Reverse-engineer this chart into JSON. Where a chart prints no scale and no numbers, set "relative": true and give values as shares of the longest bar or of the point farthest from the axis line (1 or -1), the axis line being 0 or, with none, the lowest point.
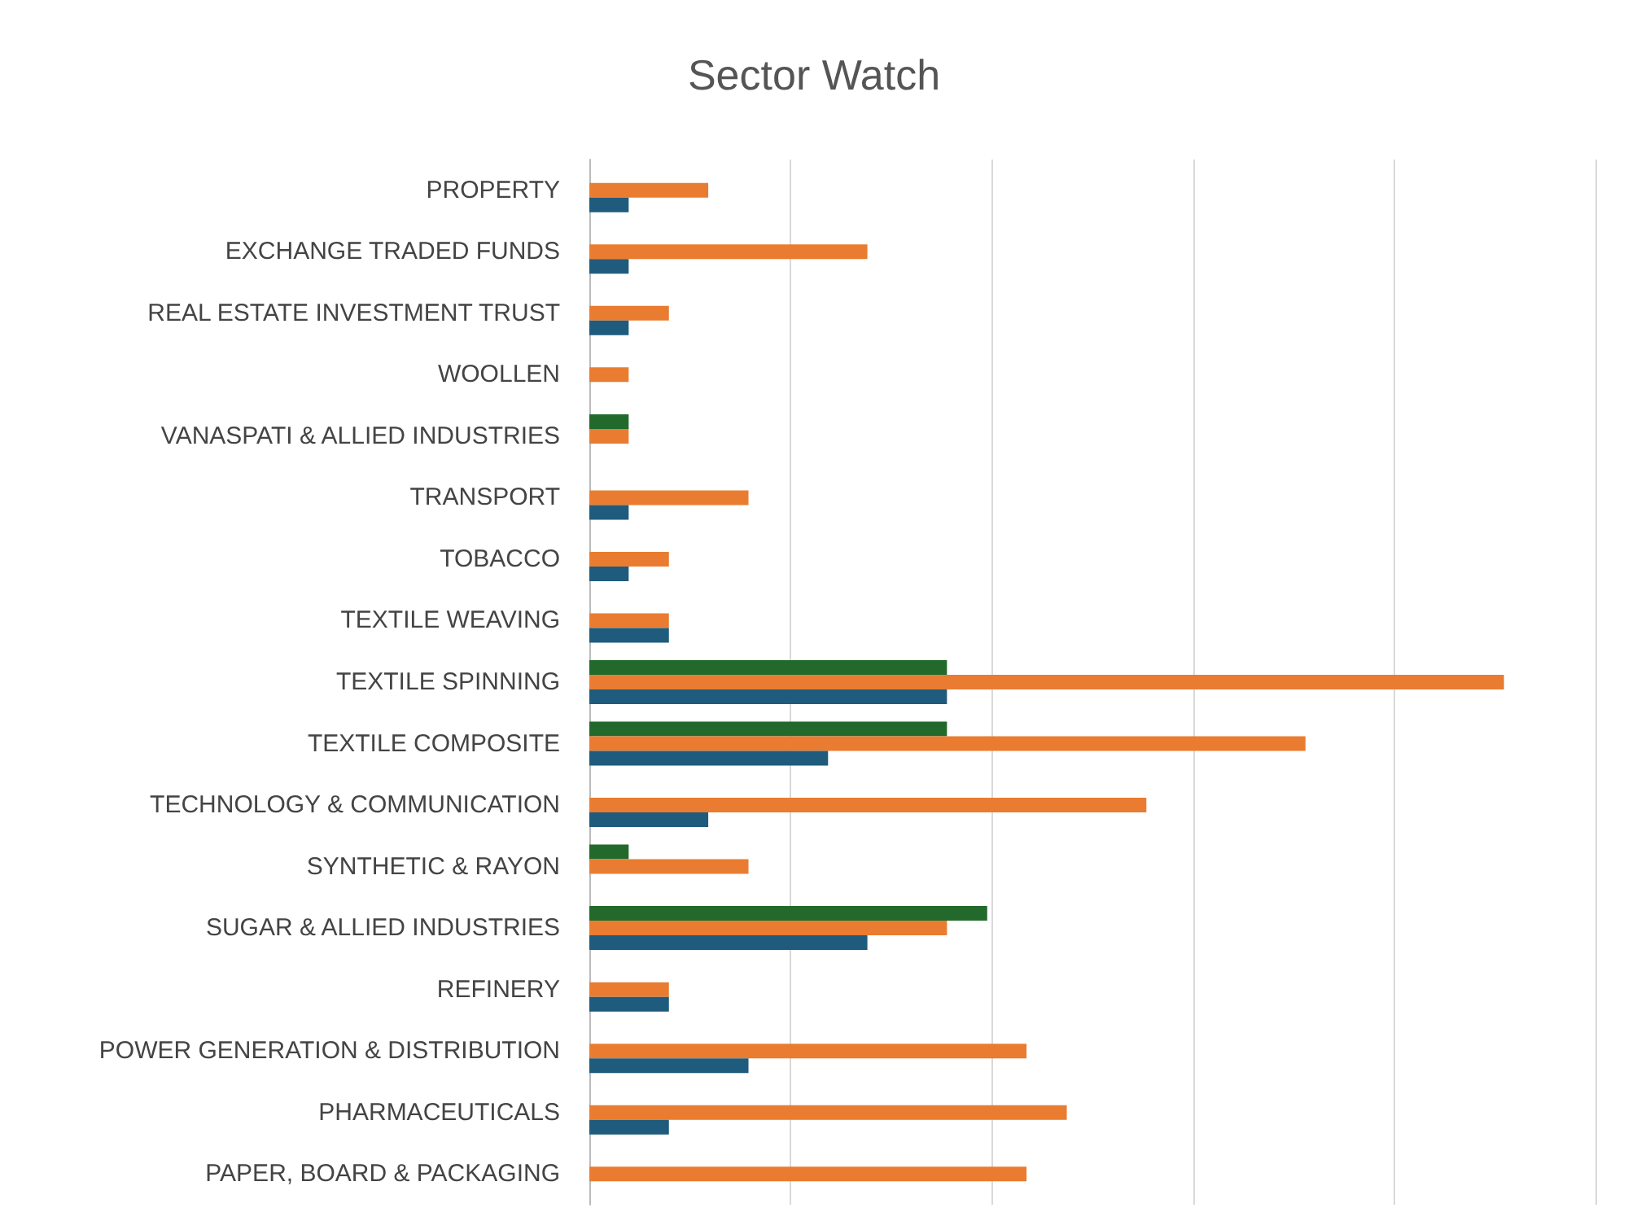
{
  "chart_data": {
    "type": "bar",
    "title": "Sector Watch",
    "orientation": "horizontal",
    "relative": true,
    "grid": "x",
    "categories": [
      "PROPERTY",
      "EXCHANGE TRADED FUNDS",
      "REAL ESTATE INVESTMENT TRUST",
      "WOOLLEN",
      "VANASPATI & ALLIED INDUSTRIES",
      "TRANSPORT",
      "TOBACCO",
      "TEXTILE WEAVING",
      "TEXTILE SPINNING",
      "TEXTILE COMPOSITE",
      "TECHNOLOGY & COMMUNICATION",
      "SYNTHETIC & RAYON",
      "SUGAR & ALLIED INDUSTRIES",
      "REFINERY",
      "POWER GENERATION & DISTRIBUTION",
      "PHARMACEUTICALS",
      "PAPER, BOARD & PACKAGING"
    ],
    "series": [
      {
        "color": "#22692b",
        "values": [
          null,
          null,
          null,
          null,
          0.043,
          null,
          null,
          null,
          0.391,
          0.391,
          null,
          0.043,
          0.435,
          null,
          null,
          null,
          null
        ]
      },
      {
        "color": "#e97c30",
        "values": [
          0.13,
          0.304,
          0.087,
          0.043,
          0.043,
          0.174,
          0.087,
          0.087,
          1,
          0.783,
          0.609,
          0.174,
          0.391,
          0.087,
          0.478,
          0.522,
          0.478
        ]
      },
      {
        "color": "#1f5b7c",
        "values": [
          0.043,
          0.043,
          0.043,
          null,
          null,
          0.043,
          0.043,
          0.087,
          0.391,
          0.261,
          0.13,
          null,
          0.304,
          0.087,
          0.174,
          0.087,
          null
        ]
      }
    ]
  }
}
